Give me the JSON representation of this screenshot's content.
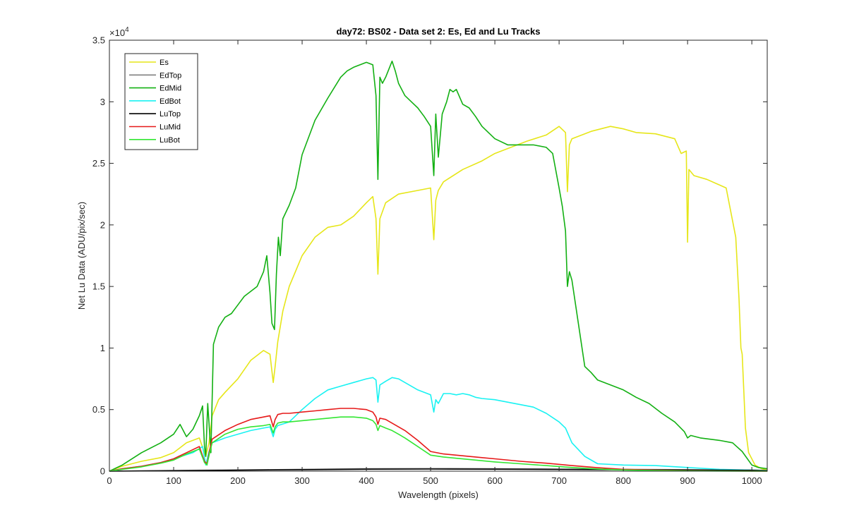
{
  "chart_data": {
    "type": "line",
    "title": "day72: BS02 - Data set 2: Es, Ed and Lu Tracks",
    "xlabel": "Wavelength (pixels)",
    "ylabel": "Net Lu Data (ADU/pix/sec)",
    "xlim": [
      0,
      1024
    ],
    "ylim": [
      0,
      35000
    ],
    "xticks": [
      0,
      100,
      200,
      300,
      400,
      500,
      600,
      700,
      800,
      900,
      1000
    ],
    "xtick_labels": [
      "0",
      "100",
      "200",
      "300",
      "400",
      "500",
      "600",
      "700",
      "800",
      "900",
      "1000"
    ],
    "yticks": [
      0,
      5000,
      10000,
      15000,
      20000,
      25000,
      30000,
      35000
    ],
    "ytick_labels": [
      "0",
      "0.5",
      "1",
      "1.5",
      "2",
      "2.5",
      "3",
      "3.5"
    ],
    "y_exponent_base": "×10",
    "y_exponent_power": "4",
    "grid": false,
    "legend_position": "top-left",
    "series": [
      {
        "name": "Es",
        "color": "#e6e619",
        "x": [
          0,
          20,
          50,
          80,
          100,
          120,
          140,
          150,
          155,
          160,
          170,
          180,
          200,
          220,
          240,
          250,
          255,
          258,
          262,
          270,
          280,
          300,
          320,
          340,
          360,
          380,
          400,
          410,
          415,
          418,
          421,
          430,
          450,
          480,
          500,
          505,
          508,
          512,
          520,
          550,
          580,
          600,
          620,
          650,
          680,
          700,
          710,
          713,
          716,
          720,
          750,
          780,
          800,
          820,
          850,
          880,
          890,
          898,
          900,
          902,
          910,
          930,
          960,
          975,
          980,
          983,
          985,
          988,
          990,
          995,
          1005,
          1015,
          1024
        ],
        "y": [
          0,
          400,
          800,
          1100,
          1500,
          2300,
          2700,
          1200,
          2300,
          4500,
          5800,
          6400,
          7500,
          9000,
          9800,
          9500,
          7200,
          8500,
          10500,
          13000,
          15000,
          17500,
          19000,
          19800,
          20000,
          20700,
          21800,
          22300,
          20500,
          16000,
          20500,
          21800,
          22500,
          22800,
          23000,
          18800,
          22000,
          22800,
          23500,
          24500,
          25200,
          25800,
          26200,
          26800,
          27300,
          28000,
          27500,
          22700,
          26500,
          27000,
          27600,
          28000,
          27800,
          27500,
          27400,
          27000,
          25800,
          26000,
          18600,
          24500,
          24000,
          23700,
          23000,
          19000,
          14000,
          10000,
          9500,
          6000,
          3500,
          1500,
          500,
          200,
          100
        ]
      },
      {
        "name": "EdTop",
        "color": "#808080",
        "x": [
          0,
          50,
          100,
          150,
          200,
          300,
          400,
          500,
          600,
          700,
          800,
          900,
          1000,
          1024
        ],
        "y": [
          0,
          30,
          60,
          80,
          100,
          150,
          200,
          210,
          200,
          170,
          150,
          120,
          90,
          50
        ]
      },
      {
        "name": "EdMid",
        "color": "#13b013",
        "x": [
          0,
          20,
          50,
          80,
          100,
          110,
          120,
          130,
          140,
          145,
          148,
          150,
          153,
          158,
          162,
          170,
          180,
          190,
          200,
          210,
          220,
          230,
          240,
          245,
          250,
          253,
          257,
          260,
          263,
          266,
          270,
          280,
          290,
          300,
          320,
          340,
          360,
          370,
          380,
          390,
          400,
          410,
          415,
          418,
          421,
          425,
          430,
          440,
          445,
          450,
          460,
          470,
          480,
          490,
          500,
          505,
          508,
          512,
          518,
          525,
          530,
          535,
          540,
          550,
          560,
          570,
          580,
          600,
          620,
          640,
          660,
          680,
          690,
          700,
          705,
          710,
          713,
          716,
          720,
          730,
          740,
          750,
          760,
          780,
          800,
          820,
          840,
          860,
          880,
          895,
          900,
          905,
          920,
          950,
          970,
          985,
          1000,
          1010,
          1024
        ],
        "y": [
          0,
          500,
          1500,
          2300,
          3000,
          3800,
          2800,
          3400,
          4500,
          5300,
          2000,
          1200,
          5500,
          1500,
          10300,
          11700,
          12500,
          12800,
          13500,
          14200,
          14600,
          15000,
          16200,
          17500,
          14500,
          12000,
          11500,
          16000,
          19000,
          17500,
          20500,
          21600,
          23000,
          25700,
          28500,
          30300,
          32000,
          32500,
          32800,
          33000,
          33200,
          33000,
          30500,
          23700,
          32000,
          31500,
          32000,
          33300,
          32500,
          31500,
          30500,
          30000,
          29500,
          28800,
          28000,
          24000,
          29000,
          25500,
          29000,
          30000,
          31000,
          30800,
          31000,
          29800,
          29500,
          28800,
          28000,
          27000,
          26500,
          26500,
          26500,
          26300,
          25800,
          23000,
          21500,
          19500,
          15000,
          16200,
          15500,
          12000,
          8500,
          8000,
          7400,
          7000,
          6600,
          6000,
          5500,
          4700,
          4000,
          3200,
          2700,
          2900,
          2700,
          2500,
          2300,
          1600,
          500,
          300,
          200
        ]
      },
      {
        "name": "EdBot",
        "color": "#19f2f2",
        "x": [
          0,
          20,
          50,
          80,
          100,
          130,
          145,
          150,
          155,
          160,
          180,
          200,
          220,
          240,
          250,
          255,
          258,
          262,
          280,
          300,
          320,
          340,
          360,
          380,
          400,
          410,
          415,
          418,
          421,
          430,
          440,
          450,
          460,
          480,
          500,
          505,
          508,
          512,
          520,
          530,
          540,
          550,
          560,
          570,
          580,
          600,
          620,
          640,
          660,
          680,
          700,
          710,
          720,
          740,
          760,
          800,
          850,
          900,
          950,
          1000,
          1024
        ],
        "y": [
          0,
          200,
          400,
          700,
          1000,
          1500,
          2000,
          500,
          1600,
          2300,
          2700,
          3000,
          3300,
          3500,
          3600,
          2800,
          3400,
          3700,
          4000,
          5000,
          5900,
          6600,
          6900,
          7200,
          7500,
          7600,
          7400,
          5600,
          7000,
          7300,
          7600,
          7500,
          7200,
          6600,
          6200,
          4800,
          5800,
          5500,
          6300,
          6300,
          6200,
          6300,
          6200,
          6000,
          5900,
          5800,
          5600,
          5400,
          5200,
          4700,
          4000,
          3500,
          2300,
          1200,
          600,
          500,
          450,
          300,
          150,
          80,
          50
        ]
      },
      {
        "name": "LuTop",
        "color": "#000000",
        "x": [
          0,
          50,
          100,
          150,
          200,
          300,
          400,
          500,
          600,
          700,
          800,
          900,
          1000,
          1024
        ],
        "y": [
          0,
          20,
          40,
          60,
          80,
          120,
          160,
          170,
          160,
          140,
          120,
          100,
          70,
          40
        ]
      },
      {
        "name": "LuMid",
        "color": "#e61919",
        "x": [
          0,
          20,
          50,
          80,
          100,
          120,
          140,
          148,
          152,
          156,
          160,
          180,
          200,
          220,
          240,
          250,
          255,
          258,
          262,
          270,
          280,
          300,
          320,
          340,
          360,
          380,
          400,
          410,
          415,
          418,
          421,
          430,
          440,
          450,
          460,
          480,
          500,
          520,
          540,
          560,
          580,
          600,
          640,
          680,
          720,
          760,
          800,
          850,
          900,
          950,
          1000,
          1024
        ],
        "y": [
          0,
          200,
          400,
          700,
          1000,
          1500,
          2000,
          800,
          600,
          1700,
          2600,
          3300,
          3800,
          4200,
          4400,
          4500,
          3600,
          4200,
          4600,
          4700,
          4700,
          4800,
          4900,
          5000,
          5100,
          5100,
          5000,
          4800,
          4400,
          3800,
          4300,
          4200,
          3900,
          3600,
          3300,
          2500,
          1600,
          1400,
          1300,
          1200,
          1100,
          1000,
          800,
          650,
          450,
          280,
          150,
          80,
          40,
          20,
          10,
          5
        ]
      },
      {
        "name": "LuBot",
        "color": "#33e633",
        "x": [
          0,
          20,
          50,
          80,
          100,
          120,
          140,
          148,
          152,
          156,
          160,
          180,
          200,
          220,
          240,
          250,
          255,
          258,
          262,
          270,
          280,
          300,
          320,
          340,
          360,
          380,
          400,
          410,
          415,
          418,
          421,
          430,
          440,
          450,
          460,
          480,
          500,
          520,
          540,
          560,
          580,
          600,
          640,
          680,
          720,
          760,
          800,
          850,
          900,
          950,
          1000,
          1024
        ],
        "y": [
          0,
          150,
          350,
          650,
          900,
          1400,
          1800,
          700,
          500,
          1500,
          2300,
          3000,
          3400,
          3600,
          3700,
          3800,
          3100,
          3600,
          3900,
          4000,
          4000,
          4100,
          4200,
          4300,
          4400,
          4400,
          4300,
          4100,
          3800,
          3300,
          3700,
          3500,
          3300,
          3000,
          2700,
          2000,
          1300,
          1150,
          1050,
          950,
          850,
          750,
          600,
          450,
          300,
          180,
          100,
          50,
          25,
          12,
          6,
          3
        ]
      }
    ]
  }
}
